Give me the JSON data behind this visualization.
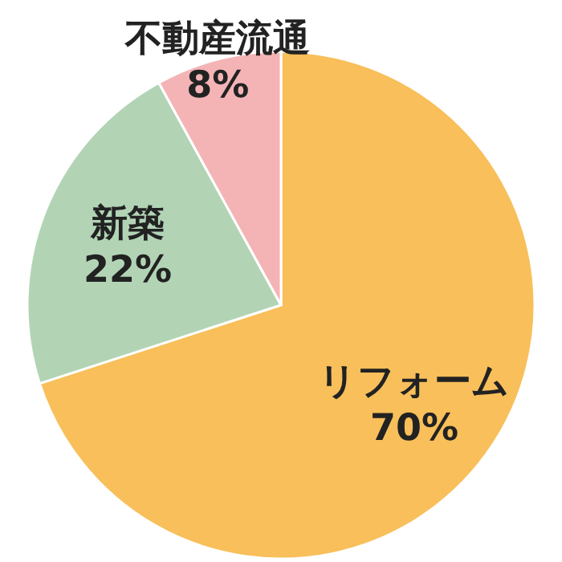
{
  "chart_data": {
    "type": "pie",
    "categories": [
      "リフォーム",
      "新築",
      "不動産流通"
    ],
    "values": [
      70,
      22,
      8
    ],
    "colors": [
      "#f8bf5a",
      "#b2d4b5",
      "#f4b4b6"
    ],
    "value_labels": [
      "70%",
      "22%",
      "8%"
    ]
  }
}
